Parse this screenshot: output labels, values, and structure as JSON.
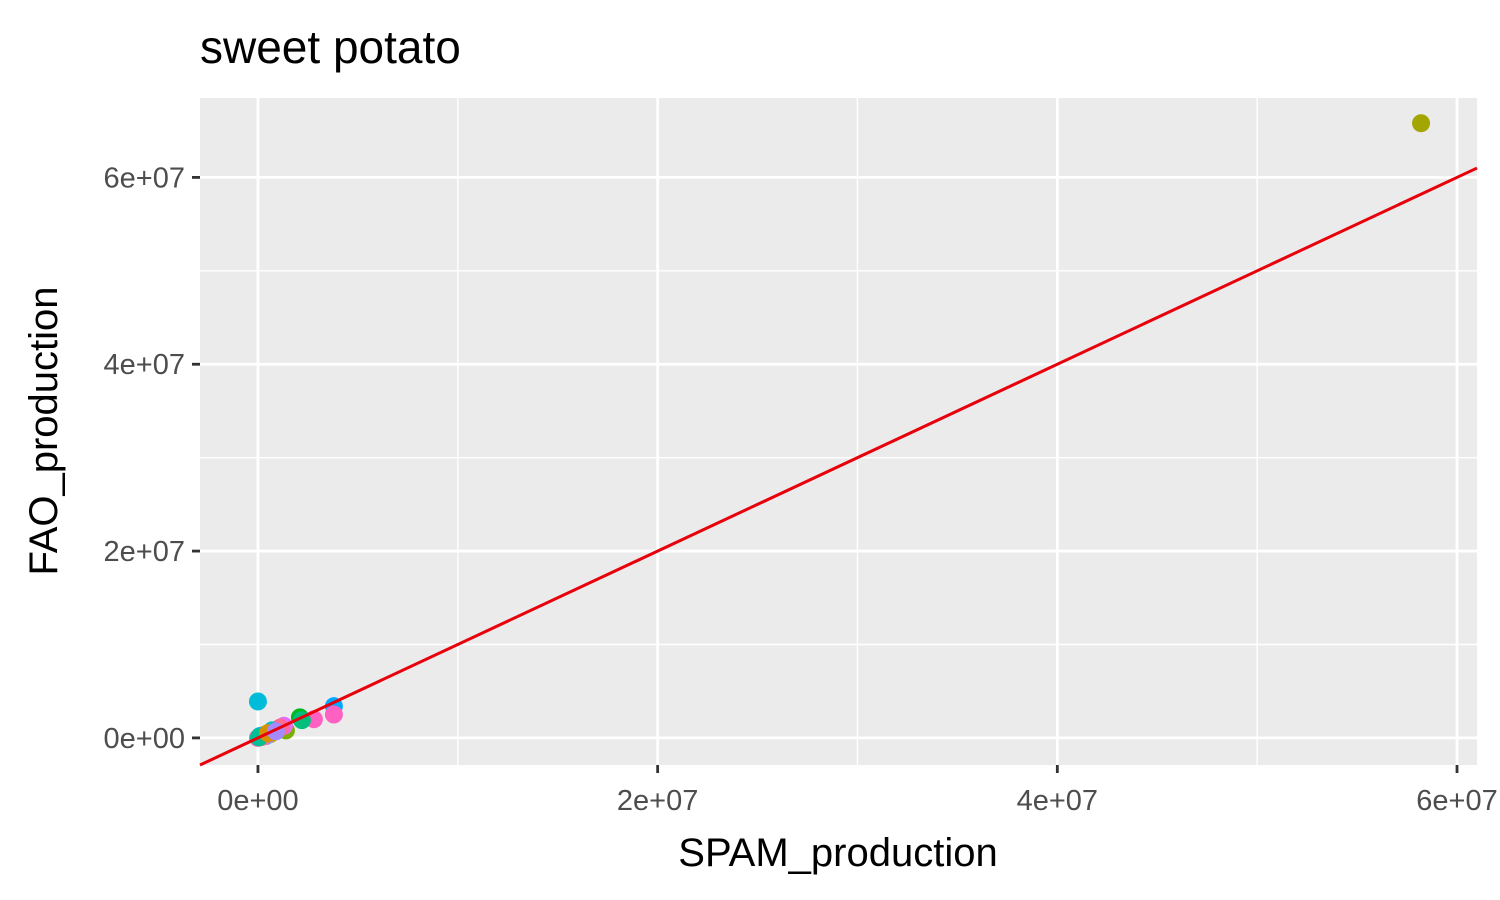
{
  "chart_data": {
    "type": "scatter",
    "title": "sweet potato",
    "xlabel": "SPAM_production",
    "ylabel": "FAO_production",
    "xlim": [
      -2900000,
      61000000
    ],
    "ylim": [
      -2900000,
      68500000
    ],
    "x_ticks": [
      {
        "value": 0,
        "label": "0e+00"
      },
      {
        "value": 20000000,
        "label": "2e+07"
      },
      {
        "value": 40000000,
        "label": "4e+07"
      },
      {
        "value": 60000000,
        "label": "6e+07"
      }
    ],
    "y_ticks": [
      {
        "value": 0,
        "label": "0e+00"
      },
      {
        "value": 20000000,
        "label": "2e+07"
      },
      {
        "value": 40000000,
        "label": "4e+07"
      },
      {
        "value": 60000000,
        "label": "6e+07"
      }
    ],
    "x_minor": [
      10000000,
      30000000,
      50000000
    ],
    "y_minor": [
      10000000,
      30000000,
      50000000
    ],
    "grid": true,
    "legend": "none",
    "reference_line": {
      "type": "identity",
      "slope": 1,
      "intercept": 0,
      "color": "#e8000b"
    },
    "panel_background": "#ebebeb",
    "grid_color": "#ffffff",
    "points": [
      {
        "x": 58200000,
        "y": 65800000,
        "color": "#a3a500"
      },
      {
        "x": 0,
        "y": 3900000,
        "color": "#00bcd8"
      },
      {
        "x": 3800000,
        "y": 3400000,
        "color": "#00a9ff"
      },
      {
        "x": 3800000,
        "y": 2500000,
        "color": "#ff61c3"
      },
      {
        "x": 2800000,
        "y": 2000000,
        "color": "#ff61c3"
      },
      {
        "x": 2100000,
        "y": 2200000,
        "color": "#00b81f"
      },
      {
        "x": 2200000,
        "y": 1900000,
        "color": "#00bf7d"
      },
      {
        "x": 1400000,
        "y": 800000,
        "color": "#7cae00"
      },
      {
        "x": 1300000,
        "y": 1300000,
        "color": "#e76bf3"
      },
      {
        "x": 1100000,
        "y": 1100000,
        "color": "#ff6c91"
      },
      {
        "x": 700000,
        "y": 800000,
        "color": "#00c0b8"
      },
      {
        "x": 600000,
        "y": 400000,
        "color": "#c49a00"
      },
      {
        "x": 400000,
        "y": 200000,
        "color": "#9590ff"
      },
      {
        "x": 300000,
        "y": 300000,
        "color": "#53b400"
      },
      {
        "x": 200000,
        "y": 100000,
        "color": "#f8766d"
      },
      {
        "x": 100000,
        "y": 200000,
        "color": "#00b6eb"
      },
      {
        "x": 0,
        "y": 0,
        "color": "#ff61c3"
      },
      {
        "x": 50000,
        "y": 60000,
        "color": "#00c094"
      },
      {
        "x": 500000,
        "y": 500000,
        "color": "#d89000"
      },
      {
        "x": 900000,
        "y": 700000,
        "color": "#a58aff"
      }
    ]
  }
}
